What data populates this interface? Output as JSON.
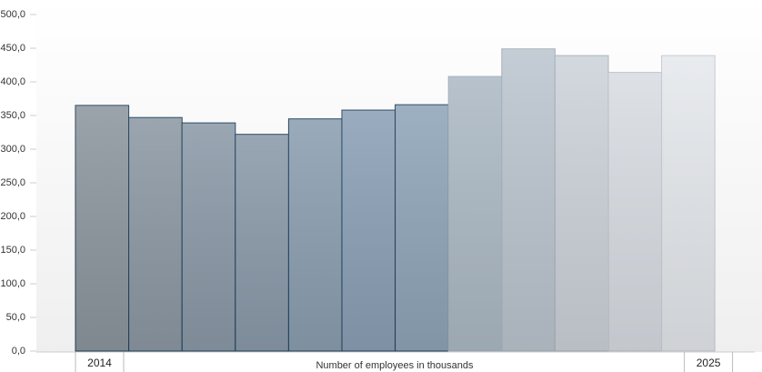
{
  "chart_data": {
    "type": "bar",
    "x_label": "Number of employees in thousands",
    "categories": [
      "2014",
      null,
      null,
      null,
      null,
      null,
      null,
      null,
      null,
      null,
      null,
      "2025"
    ],
    "values": [
      365,
      347,
      339,
      322,
      345,
      358,
      366,
      408,
      449,
      439,
      414,
      439
    ],
    "colors": [
      "#8e979f",
      "#8d99a4",
      "#8c9aa8",
      "#8b9bab",
      "#8c9fb1",
      "#8ca1b6",
      "#90a5b9",
      "#adbac5",
      "#bcc6cf",
      "#cdd3da",
      "#d9dde3",
      "#e6e9ed"
    ],
    "border_colors": [
      "#1f3f5a",
      "#1f3f5a",
      "#1f3f5a",
      "#1f3f5a",
      "#1f3f5a",
      "#1f3f5a",
      "#1f3f5a",
      "#a3aeb8",
      "#a3aeb8",
      "#a3aeb8",
      "#b7bfc7",
      "#c3c9cf"
    ],
    "ylim": [
      0,
      500
    ],
    "yticks": [
      {
        "value": 0,
        "label": "0,0"
      },
      {
        "value": 50,
        "label": "50,0"
      },
      {
        "value": 100,
        "label": "100,0"
      },
      {
        "value": 150,
        "label": "150,0"
      },
      {
        "value": 200,
        "label": "200,0"
      },
      {
        "value": 250,
        "label": "250,0"
      },
      {
        "value": 300,
        "label": "300,0"
      },
      {
        "value": 350,
        "label": "350,0"
      },
      {
        "value": 400,
        "label": "400,0"
      },
      {
        "value": 450,
        "label": "450,0"
      },
      {
        "value": 500,
        "label": "500,0"
      }
    ],
    "grid": false
  }
}
